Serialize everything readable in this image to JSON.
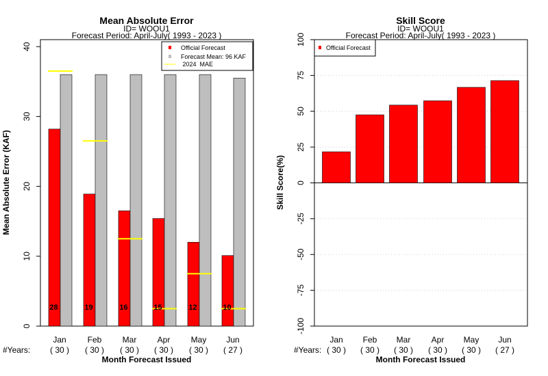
{
  "chart_data": [
    {
      "type": "bar",
      "title": "Mean Absolute Error",
      "subtitle_id": "ID= WOOU1",
      "subtitle_period": "Forecast Period: April-July( 1993 - 2023 )",
      "ylabel": "Mean Absolute Error (KAF)",
      "xlabel": "Month Forecast Issued",
      "years_prefix": "#Years:",
      "ylim": [
        0,
        41
      ],
      "yticks": [
        "0",
        "10",
        "20",
        "30",
        "40"
      ],
      "categories": [
        "Jan",
        "Feb",
        "Mar",
        "Apr",
        "May",
        "Jun"
      ],
      "years": [
        "( 30 )",
        "( 30 )",
        "( 30 )",
        "( 30 )",
        "( 30 )",
        "( 27 )"
      ],
      "series": [
        {
          "name": "Official Forecast",
          "color": "#ff0000",
          "values": [
            28.2,
            18.9,
            16.5,
            15.4,
            12.0,
            10.1
          ],
          "labels": [
            "28",
            "19",
            "16",
            "15",
            "12",
            "10"
          ]
        },
        {
          "name": "Forecast Mean: 96 KAF",
          "color": "#bebebe",
          "values": [
            36.0,
            36.0,
            36.0,
            36.0,
            36.0,
            35.5
          ]
        }
      ],
      "mae_2024": {
        "name": " 2024  MAE",
        "color": "#ffff00",
        "values": [
          36.5,
          26.5,
          12.5,
          2.5,
          7.5,
          2.5
        ]
      },
      "legend_position": "top-right"
    },
    {
      "type": "bar",
      "title": "Skill Score",
      "subtitle_id": "ID= WOOU1",
      "subtitle_period": "Forecast Period: April-July( 1993 - 2023 )",
      "ylabel": "Skill Score(%)",
      "xlabel": "Month Forecast Issued",
      "years_prefix": "#Years:",
      "ylim": [
        -100,
        100
      ],
      "yticks": [
        "-100",
        "-75",
        "-50",
        "-25",
        "0",
        "25",
        "50",
        "75",
        "100"
      ],
      "grid": true,
      "categories": [
        "Jan",
        "Feb",
        "Mar",
        "Apr",
        "May",
        "Jun"
      ],
      "years": [
        "( 30 )",
        "( 30 )",
        "( 30 )",
        "( 30 )",
        "( 30 )",
        "( 27 )"
      ],
      "series": [
        {
          "name": "Official Forecast",
          "color": "#ff0000",
          "values": [
            21.7,
            47.5,
            54.3,
            57.3,
            66.7,
            71.4
          ]
        }
      ],
      "legend_position": "top-left"
    }
  ]
}
